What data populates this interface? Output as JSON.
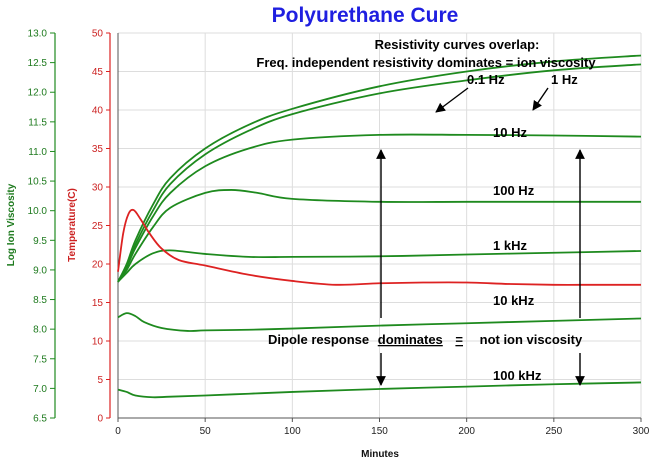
{
  "chart_data": {
    "type": "line",
    "title": "Polyurethane Cure",
    "xlabel": "Minutes",
    "ylabel_left": "Log Ion Viscosity",
    "ylabel_temp": "Temperature(C)",
    "xlim": [
      0,
      300
    ],
    "ylim_left": [
      6.5,
      13.0
    ],
    "ylim_temp": [
      0,
      50
    ],
    "x_ticks": [
      "0",
      "50",
      "100",
      "150",
      "200",
      "250",
      "300"
    ],
    "left_ticks": [
      "6.5",
      "7.0",
      "7.5",
      "8.0",
      "8.5",
      "9.0",
      "9.5",
      "10.0",
      "10.5",
      "11.0",
      "11.5",
      "12.0",
      "12.5",
      "13.0"
    ],
    "temp_ticks": [
      "0",
      "5",
      "10",
      "15",
      "20",
      "25",
      "30",
      "35",
      "40",
      "45",
      "50"
    ],
    "grid": true,
    "colors": {
      "viscosity": "#1e8a1e",
      "temperature": "#dd2222",
      "title": "#1f1fe0",
      "grid": "#dddddd"
    },
    "series": [
      {
        "label": "0.1 Hz",
        "axis": "left",
        "x": [
          0,
          5,
          10,
          20,
          30,
          50,
          75,
          100,
          150,
          200,
          250,
          300
        ],
        "y": [
          8.8,
          9.1,
          9.5,
          10.1,
          10.55,
          11.05,
          11.45,
          11.72,
          12.1,
          12.35,
          12.52,
          12.62
        ]
      },
      {
        "label": "1 Hz",
        "axis": "left",
        "x": [
          0,
          5,
          10,
          20,
          30,
          50,
          75,
          100,
          150,
          200,
          250,
          300
        ],
        "y": [
          8.8,
          9.07,
          9.43,
          10.0,
          10.45,
          10.95,
          11.35,
          11.63,
          11.98,
          12.2,
          12.37,
          12.47
        ]
      },
      {
        "label": "10 Hz",
        "axis": "left",
        "x": [
          0,
          5,
          10,
          20,
          30,
          50,
          75,
          100,
          150,
          200,
          250,
          300
        ],
        "y": [
          8.8,
          9.05,
          9.37,
          9.9,
          10.3,
          10.75,
          11.05,
          11.2,
          11.28,
          11.28,
          11.27,
          11.25
        ]
      },
      {
        "label": "100 Hz",
        "axis": "left",
        "x": [
          0,
          5,
          10,
          20,
          30,
          50,
          65,
          80,
          100,
          150,
          200,
          250,
          300
        ],
        "y": [
          8.8,
          9.0,
          9.27,
          9.72,
          10.05,
          10.3,
          10.35,
          10.3,
          10.2,
          10.15,
          10.15,
          10.15,
          10.15
        ]
      },
      {
        "label": "1 kHz",
        "axis": "left",
        "x": [
          0,
          5,
          10,
          20,
          30,
          50,
          75,
          100,
          150,
          200,
          250,
          300
        ],
        "y": [
          8.8,
          8.95,
          9.1,
          9.28,
          9.33,
          9.27,
          9.22,
          9.22,
          9.23,
          9.26,
          9.29,
          9.32
        ]
      },
      {
        "label": "10 kHz",
        "axis": "left",
        "x": [
          0,
          5,
          10,
          15,
          25,
          40,
          50,
          75,
          100,
          150,
          200,
          250,
          300
        ],
        "y": [
          8.2,
          8.27,
          8.22,
          8.12,
          8.02,
          7.97,
          7.98,
          7.99,
          8.01,
          8.06,
          8.1,
          8.14,
          8.18
        ]
      },
      {
        "label": "100 kHz",
        "axis": "left",
        "x": [
          0,
          5,
          10,
          20,
          30,
          50,
          75,
          100,
          150,
          200,
          250,
          300
        ],
        "y": [
          6.98,
          6.94,
          6.88,
          6.85,
          6.86,
          6.88,
          6.91,
          6.94,
          6.99,
          7.03,
          7.07,
          7.1
        ]
      },
      {
        "label": "",
        "axis": "temp",
        "x": [
          0,
          3,
          6,
          9,
          13,
          18,
          25,
          35,
          50,
          75,
          100,
          125,
          150,
          175,
          200,
          225,
          250,
          275,
          300
        ],
        "y": [
          19.0,
          24.0,
          26.5,
          27.0,
          25.8,
          24.0,
          22.0,
          20.5,
          19.8,
          18.6,
          17.8,
          17.3,
          17.5,
          17.6,
          17.6,
          17.4,
          17.3,
          17.3,
          17.3
        ]
      }
    ],
    "annotations": {
      "top_line1": "Resistivity curves overlap:",
      "top_line2": "Freq. independent resistivity dominates = ion viscosity",
      "bottom_prefix": "Dipole response",
      "bottom_underlined_a": "dominates",
      "bottom_underlined_b": "=",
      "bottom_suffix": "not ion viscosity"
    },
    "frequency_labels": [
      "0.1 Hz",
      "1 Hz",
      "10 Hz",
      "100 Hz",
      "1 kHz",
      "10 kHz",
      "100 kHz"
    ]
  }
}
